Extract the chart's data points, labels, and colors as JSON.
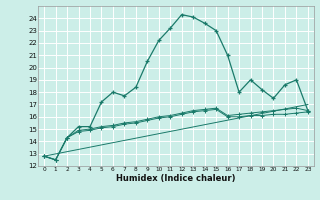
{
  "title": "",
  "xlabel": "Humidex (Indice chaleur)",
  "bg_color": "#cceee8",
  "grid_color": "#ffffff",
  "line_color": "#1a7a6a",
  "xlim": [
    -0.5,
    23.5
  ],
  "ylim": [
    12,
    25
  ],
  "yticks": [
    12,
    13,
    14,
    15,
    16,
    17,
    18,
    19,
    20,
    21,
    22,
    23,
    24
  ],
  "xticks": [
    0,
    1,
    2,
    3,
    4,
    5,
    6,
    7,
    8,
    9,
    10,
    11,
    12,
    13,
    14,
    15,
    16,
    17,
    18,
    19,
    20,
    21,
    22,
    23
  ],
  "series1_x": [
    0,
    1,
    2,
    3,
    4,
    5,
    6,
    7,
    8,
    9,
    10,
    11,
    12,
    13,
    14,
    15,
    16,
    17,
    18,
    19,
    20,
    21,
    22,
    23
  ],
  "series1_y": [
    12.8,
    12.5,
    14.3,
    15.2,
    15.2,
    17.2,
    18.0,
    17.7,
    18.4,
    20.5,
    22.2,
    23.2,
    24.3,
    24.1,
    23.6,
    23.0,
    21.0,
    18.0,
    19.0,
    18.2,
    17.5,
    18.6,
    19.0,
    16.5
  ],
  "series2_x": [
    0,
    1,
    2,
    3,
    4,
    5,
    6,
    7,
    8,
    9,
    10,
    11,
    12,
    13,
    14,
    15,
    16,
    17,
    18,
    19,
    20,
    21,
    22,
    23
  ],
  "series2_y": [
    12.8,
    12.5,
    14.3,
    14.8,
    14.9,
    15.1,
    15.2,
    15.4,
    15.5,
    15.7,
    15.9,
    16.0,
    16.2,
    16.4,
    16.5,
    16.6,
    16.0,
    16.0,
    16.1,
    16.1,
    16.2,
    16.2,
    16.3,
    16.4
  ],
  "series3_x": [
    0,
    1,
    2,
    3,
    4,
    5,
    6,
    7,
    8,
    9,
    10,
    11,
    12,
    13,
    14,
    15,
    16,
    17,
    18,
    19,
    20,
    21,
    22,
    23
  ],
  "series3_y": [
    12.8,
    12.5,
    14.3,
    14.9,
    15.0,
    15.2,
    15.3,
    15.5,
    15.6,
    15.8,
    16.0,
    16.1,
    16.3,
    16.5,
    16.6,
    16.7,
    16.1,
    16.2,
    16.3,
    16.4,
    16.5,
    16.6,
    16.7,
    16.5
  ],
  "series4_x": [
    0,
    23
  ],
  "series4_y": [
    12.8,
    17.0
  ]
}
